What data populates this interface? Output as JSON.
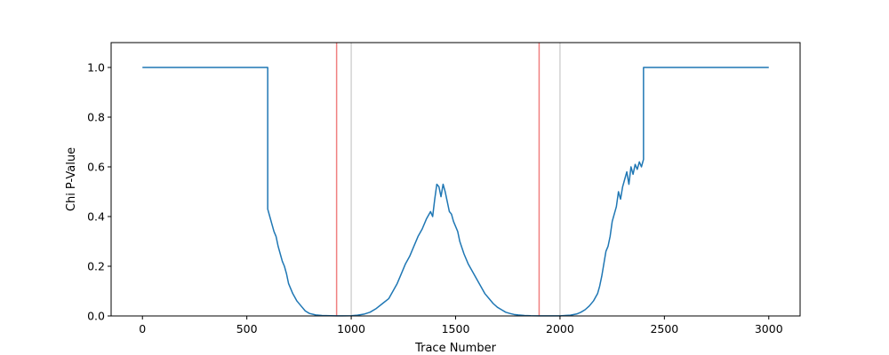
{
  "chart_data": {
    "type": "line",
    "title": "",
    "xlabel": "Trace Number",
    "ylabel": "Chi P-Value",
    "xlim": [
      -150,
      3150
    ],
    "ylim": [
      0,
      1.1
    ],
    "xticks": [
      0,
      500,
      1000,
      1500,
      2000,
      2500,
      3000
    ],
    "yticks": [
      0.0,
      0.2,
      0.4,
      0.6,
      0.8,
      1.0
    ],
    "xtick_labels": [
      "0",
      "500",
      "1000",
      "1500",
      "2000",
      "2500",
      "3000"
    ],
    "ytick_labels": [
      "0.0",
      "0.2",
      "0.4",
      "0.6",
      "0.8",
      "1.0"
    ],
    "grid": false,
    "series": [
      {
        "color": "#1f77b4",
        "x": [
          0,
          600,
          600,
          610,
          620,
          630,
          640,
          650,
          660,
          670,
          680,
          690,
          700,
          720,
          740,
          760,
          780,
          800,
          830,
          860,
          900,
          930,
          960,
          1000,
          1030,
          1060,
          1090,
          1120,
          1150,
          1180,
          1200,
          1220,
          1240,
          1260,
          1280,
          1300,
          1320,
          1340,
          1360,
          1380,
          1390,
          1400,
          1410,
          1420,
          1430,
          1440,
          1450,
          1460,
          1470,
          1480,
          1490,
          1500,
          1510,
          1520,
          1540,
          1560,
          1580,
          1600,
          1620,
          1640,
          1660,
          1680,
          1700,
          1720,
          1740,
          1760,
          1780,
          1800,
          1830,
          1860,
          1900,
          1950,
          2000,
          2050,
          2080,
          2100,
          2120,
          2140,
          2160,
          2180,
          2190,
          2200,
          2210,
          2220,
          2230,
          2240,
          2250,
          2260,
          2270,
          2280,
          2290,
          2300,
          2310,
          2320,
          2330,
          2340,
          2350,
          2360,
          2370,
          2380,
          2390,
          2400,
          2400,
          3000
        ],
        "y": [
          1.0,
          1.0,
          0.43,
          0.4,
          0.37,
          0.34,
          0.32,
          0.28,
          0.25,
          0.22,
          0.2,
          0.17,
          0.13,
          0.09,
          0.06,
          0.04,
          0.02,
          0.01,
          0.004,
          0.002,
          0.001,
          0.0005,
          0.0003,
          0.001,
          0.003,
          0.007,
          0.015,
          0.03,
          0.05,
          0.07,
          0.1,
          0.13,
          0.17,
          0.21,
          0.24,
          0.28,
          0.32,
          0.35,
          0.39,
          0.42,
          0.4,
          0.47,
          0.53,
          0.52,
          0.48,
          0.53,
          0.5,
          0.46,
          0.42,
          0.41,
          0.38,
          0.36,
          0.34,
          0.3,
          0.25,
          0.21,
          0.18,
          0.15,
          0.12,
          0.09,
          0.07,
          0.05,
          0.035,
          0.025,
          0.015,
          0.01,
          0.006,
          0.004,
          0.002,
          0.001,
          0.0005,
          0.0003,
          0.0006,
          0.003,
          0.008,
          0.015,
          0.025,
          0.04,
          0.06,
          0.09,
          0.12,
          0.16,
          0.21,
          0.26,
          0.28,
          0.32,
          0.38,
          0.41,
          0.44,
          0.5,
          0.47,
          0.52,
          0.55,
          0.58,
          0.53,
          0.6,
          0.57,
          0.61,
          0.59,
          0.62,
          0.6,
          0.63,
          1.0,
          1.0
        ]
      }
    ],
    "vlines": [
      {
        "x": 930,
        "color": "#f08080"
      },
      {
        "x": 1000,
        "color": "#d3d3d3"
      },
      {
        "x": 1900,
        "color": "#f08080"
      },
      {
        "x": 2000,
        "color": "#d3d3d3"
      }
    ]
  }
}
